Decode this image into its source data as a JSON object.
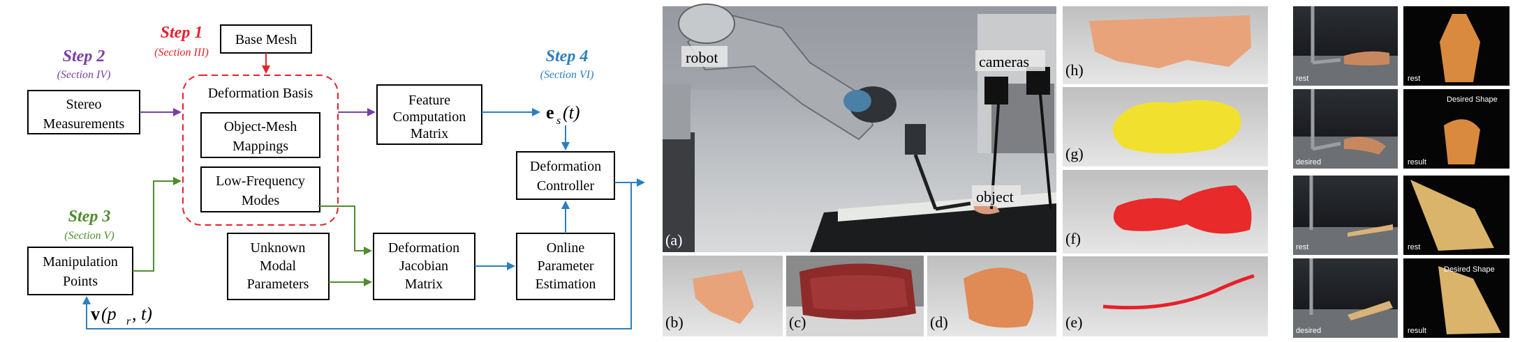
{
  "diagram": {
    "steps": {
      "step1": {
        "title": "Step 1",
        "section": "(Section III)",
        "color": "#e8202a"
      },
      "step2": {
        "title": "Step 2",
        "section": "(Section IV)",
        "color": "#7a3fa6"
      },
      "step3": {
        "title": "Step 3",
        "section": "(Section V)",
        "color": "#4e8c2e"
      },
      "step4": {
        "title": "Step 4",
        "section": "(Section VI)",
        "color": "#2a7fc1"
      }
    },
    "boxes": {
      "base_mesh": "Base Mesh",
      "stereo": [
        "Stereo",
        "Measurements"
      ],
      "deformation_basis": "Deformation Basis",
      "object_mesh": [
        "Object-Mesh",
        "Mappings"
      ],
      "low_freq": [
        "Low-Frequency",
        "Modes"
      ],
      "feature": [
        "Feature",
        "Computation",
        "Matrix"
      ],
      "es": "e",
      "es_sub": "s",
      "es_arg": "(t)",
      "def_controller": [
        "Deformation",
        "Controller"
      ],
      "manip_points": [
        "Manipulation",
        "Points"
      ],
      "unknown_modal": [
        "Unknown",
        "Modal",
        "Parameters"
      ],
      "def_jacobian": [
        "Deformation",
        "Jacobian",
        "Matrix"
      ],
      "online_param": [
        "Online",
        "Parameter",
        "Estimation"
      ],
      "v_label_main": "v",
      "v_label_args": "(p",
      "v_label_sub": "r",
      "v_label_end": ", t)"
    }
  },
  "photos": {
    "main_labels": {
      "robot": "robot",
      "cameras": "cameras",
      "object": "object"
    },
    "panel_letters": [
      "(a)",
      "(b)",
      "(c)",
      "(d)",
      "(e)",
      "(f)",
      "(g)",
      "(h)"
    ],
    "sim_labels": {
      "rest": "rest",
      "desired": "desired",
      "result": "result",
      "desired_shape": "Desired Shape"
    }
  }
}
